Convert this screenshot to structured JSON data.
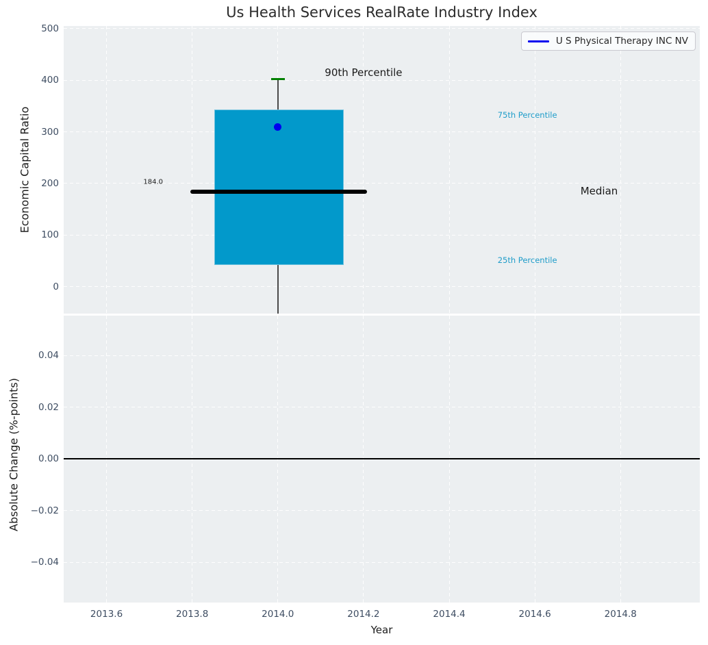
{
  "chart_data": {
    "top": {
      "type": "box",
      "title": "Us Health Services RealRate Industry Index",
      "ylabel": "Economic Capital Ratio",
      "xlim": [
        2013.5,
        2014.985
      ],
      "ylim": [
        -52,
        505
      ],
      "grid": "white dashed, on",
      "yticks": [
        {
          "v": 0,
          "label": "0"
        },
        {
          "v": 100,
          "label": "100"
        },
        {
          "v": 200,
          "label": "200"
        },
        {
          "v": 300,
          "label": "300"
        },
        {
          "v": 400,
          "label": "400"
        },
        {
          "v": 500,
          "label": "500"
        }
      ],
      "box": {
        "x": 2014.0,
        "box_left": 2013.851,
        "box_right": 2014.153,
        "p25": 42,
        "median": 184.0,
        "p75": 343,
        "p90": 402,
        "whisker_low_clipped": true,
        "median_line_left": 2013.796,
        "median_line_right": 2014.208,
        "box_color": "#0299cb",
        "median_color": "#000000",
        "cap_color": "#008000",
        "whisker_color": "#4a4a4a"
      },
      "company_point": {
        "label": "U S Physical Therapy INC NV",
        "x": 2014.0,
        "y": 310,
        "color": "#0000ee"
      },
      "legend": {
        "label": "U S Physical Therapy INC NV",
        "line_color": "#0000ee",
        "position": "upper right"
      },
      "annotations": [
        {
          "text": "90th Percentile",
          "x": 2014.2,
          "y": 415,
          "color": "#1a1a1a",
          "size": 15,
          "align": "center"
        },
        {
          "text": "184.0",
          "x": 2013.709,
          "y": 202,
          "color": "#1a1a1a",
          "size": 10,
          "align": "center"
        },
        {
          "text": "75th Percentile",
          "x": 2014.513,
          "y": 333,
          "color": "#1e9cc9",
          "size": 11.5,
          "align": "left"
        },
        {
          "text": "Median",
          "x": 2014.75,
          "y": 185,
          "color": "#1a1a1a",
          "size": 15,
          "align": "center"
        },
        {
          "text": "25th Percentile",
          "x": 2014.513,
          "y": 52,
          "color": "#1e9cc9",
          "size": 11.5,
          "align": "left"
        }
      ]
    },
    "bottom": {
      "type": "line",
      "ylabel": "Absolute Change (%-points)",
      "xlabel": "Year",
      "xlim": [
        2013.5,
        2014.985
      ],
      "ylim": [
        -0.0556,
        0.0554
      ],
      "grid": "white dashed, on",
      "zero_line": 0.0,
      "yticks": [
        {
          "v": 0.04,
          "label": "0.04"
        },
        {
          "v": 0.02,
          "label": "0.02"
        },
        {
          "v": 0.0,
          "label": "0.00"
        },
        {
          "v": -0.02,
          "label": "−0.02"
        },
        {
          "v": -0.04,
          "label": "−0.04"
        }
      ],
      "xticks": [
        {
          "v": 2013.6,
          "label": "2013.6"
        },
        {
          "v": 2013.8,
          "label": "2013.8"
        },
        {
          "v": 2014.0,
          "label": "2014.0"
        },
        {
          "v": 2014.2,
          "label": "2014.2"
        },
        {
          "v": 2014.4,
          "label": "2014.4"
        },
        {
          "v": 2014.6,
          "label": "2014.6"
        },
        {
          "v": 2014.8,
          "label": "2014.8"
        }
      ]
    },
    "colors": {
      "figure_background": "#ffffff",
      "axes_background": "#eceff1",
      "gridline": "#ffffff",
      "tick_label": "#3d4c61"
    }
  }
}
